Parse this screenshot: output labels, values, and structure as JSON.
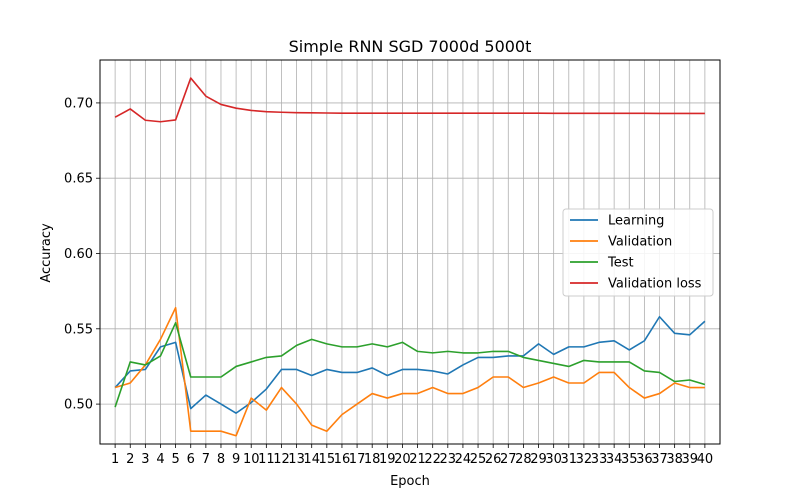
{
  "chart_data": {
    "type": "line",
    "title": "Simple RNN SGD 7000d 5000t",
    "xlabel": "Epoch",
    "ylabel": "Accuracy",
    "xlim": [
      0.0,
      41.0
    ],
    "ylim": [
      0.4735,
      0.7285
    ],
    "grid": true,
    "legend_position": "center-right",
    "x": [
      1,
      2,
      3,
      4,
      5,
      6,
      7,
      8,
      9,
      10,
      11,
      12,
      13,
      14,
      15,
      16,
      17,
      18,
      19,
      20,
      21,
      22,
      23,
      24,
      25,
      26,
      27,
      28,
      29,
      30,
      31,
      32,
      33,
      34,
      35,
      36,
      37,
      38,
      39,
      40
    ],
    "xticks": [
      "1",
      "2",
      "3",
      "4",
      "5",
      "6",
      "7",
      "8",
      "9",
      "10",
      "11",
      "12",
      "13",
      "14",
      "15",
      "16",
      "17",
      "18",
      "19",
      "20",
      "21",
      "22",
      "23",
      "24",
      "25",
      "26",
      "27",
      "28",
      "29",
      "30",
      "31",
      "32",
      "33",
      "34",
      "35",
      "36",
      "37",
      "38",
      "39",
      "40"
    ],
    "yticks": [
      {
        "value": 0.5,
        "label": "0.50"
      },
      {
        "value": 0.55,
        "label": "0.55"
      },
      {
        "value": 0.6,
        "label": "0.60"
      },
      {
        "value": 0.65,
        "label": "0.65"
      },
      {
        "value": 0.7,
        "label": "0.70"
      }
    ],
    "series": [
      {
        "name": "Learning",
        "color": "#1f77b4",
        "values": [
          0.511,
          0.522,
          0.523,
          0.538,
          0.541,
          0.497,
          0.506,
          0.5,
          0.494,
          0.501,
          0.51,
          0.523,
          0.523,
          0.519,
          0.523,
          0.521,
          0.521,
          0.524,
          0.519,
          0.523,
          0.523,
          0.522,
          0.52,
          0.526,
          0.531,
          0.531,
          0.532,
          0.532,
          0.54,
          0.533,
          0.538,
          0.538,
          0.541,
          0.542,
          0.536,
          0.542,
          0.558,
          0.547,
          0.546,
          0.555
        ]
      },
      {
        "name": "Validation",
        "color": "#ff7f0e",
        "values": [
          0.511,
          0.514,
          0.526,
          0.543,
          0.564,
          0.482,
          0.482,
          0.482,
          0.479,
          0.504,
          0.496,
          0.511,
          0.5,
          0.486,
          0.482,
          0.493,
          0.5,
          0.507,
          0.504,
          0.507,
          0.507,
          0.511,
          0.507,
          0.507,
          0.511,
          0.518,
          0.518,
          0.511,
          0.514,
          0.518,
          0.514,
          0.514,
          0.521,
          0.521,
          0.511,
          0.504,
          0.507,
          0.514,
          0.511,
          0.511
        ]
      },
      {
        "name": "Test",
        "color": "#2ca02c",
        "values": [
          0.498,
          0.528,
          0.526,
          0.532,
          0.554,
          0.518,
          0.518,
          0.518,
          0.525,
          0.528,
          0.531,
          0.532,
          0.539,
          0.543,
          0.54,
          0.538,
          0.538,
          0.54,
          0.538,
          0.541,
          0.535,
          0.534,
          0.535,
          0.534,
          0.534,
          0.535,
          0.535,
          0.531,
          0.529,
          0.527,
          0.525,
          0.529,
          0.528,
          0.528,
          0.528,
          0.522,
          0.521,
          0.515,
          0.516,
          0.513
        ]
      },
      {
        "name": "Validation loss",
        "color": "#d62728",
        "values": [
          0.6905,
          0.696,
          0.6885,
          0.6875,
          0.6887,
          0.7165,
          0.7045,
          0.699,
          0.6965,
          0.695,
          0.6942,
          0.6938,
          0.6935,
          0.6934,
          0.6933,
          0.6932,
          0.6932,
          0.6932,
          0.6932,
          0.6932,
          0.6932,
          0.6932,
          0.6932,
          0.6932,
          0.6932,
          0.6932,
          0.6932,
          0.6932,
          0.6932,
          0.6931,
          0.6931,
          0.6931,
          0.6931,
          0.6931,
          0.6931,
          0.6931,
          0.693,
          0.693,
          0.693,
          0.693
        ]
      }
    ]
  }
}
